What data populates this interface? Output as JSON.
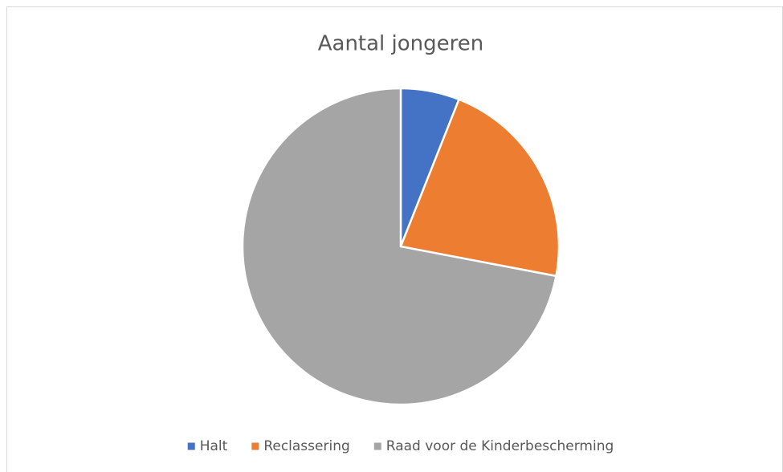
{
  "chart_data": {
    "type": "pie",
    "title": "Aantal jongeren",
    "categories": [
      "Halt",
      "Reclassering",
      "Raad voor de Kinderbescherming"
    ],
    "values": [
      6,
      22,
      72
    ],
    "colors": [
      "#4472c4",
      "#ed7d31",
      "#a5a5a5"
    ],
    "legend": "bottom"
  }
}
